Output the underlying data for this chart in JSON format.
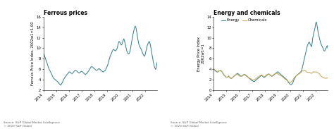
{
  "title_left": "Ferrous prices",
  "title_right": "Energy and chemicals",
  "ylabel_left": "Ferrous Price Index, 2002w1=1.00",
  "ylabel_right": "Energy Price Index\n2002w1=1",
  "ferrous_color": "#2a7d8c",
  "energy_color": "#2a7d8c",
  "chemicals_color": "#c8a44a",
  "ylim_left": [
    2.0,
    16.0
  ],
  "ylim_right": [
    0.0,
    14.0
  ],
  "yticks_left": [
    2.0,
    4.0,
    6.0,
    8.0,
    10.0,
    12.0,
    14.0,
    16.0
  ],
  "yticks_right": [
    0.0,
    2.0,
    4.0,
    6.0,
    8.0,
    10.0,
    12.0,
    14.0
  ],
  "ferrous": [
    9.0,
    8.8,
    8.5,
    8.2,
    7.8,
    7.5,
    7.2,
    6.8,
    6.5,
    6.2,
    5.9,
    5.7,
    5.5,
    5.2,
    5.0,
    4.7,
    4.5,
    4.3,
    4.2,
    4.1,
    4.0,
    3.9,
    3.8,
    3.7,
    3.6,
    3.5,
    3.3,
    3.2,
    3.1,
    3.0,
    3.2,
    3.4,
    3.6,
    3.9,
    4.1,
    4.3,
    4.5,
    4.6,
    4.8,
    5.0,
    5.1,
    5.2,
    5.4,
    5.5,
    5.5,
    5.4,
    5.3,
    5.2,
    5.2,
    5.3,
    5.4,
    5.6,
    5.7,
    5.8,
    5.8,
    5.7,
    5.6,
    5.5,
    5.4,
    5.3,
    5.3,
    5.4,
    5.5,
    5.6,
    5.6,
    5.5,
    5.4,
    5.3,
    5.2,
    5.1,
    5.0,
    5.1,
    5.2,
    5.3,
    5.5,
    5.6,
    5.8,
    6.0,
    6.2,
    6.4,
    6.5,
    6.5,
    6.4,
    6.3,
    6.2,
    6.1,
    6.0,
    5.9,
    5.8,
    5.8,
    5.9,
    6.0,
    6.1,
    6.1,
    6.0,
    5.9,
    5.8,
    5.7,
    5.6,
    5.5,
    5.5,
    5.6,
    5.7,
    5.8,
    6.0,
    6.3,
    6.5,
    6.8,
    7.2,
    7.6,
    8.0,
    8.4,
    8.7,
    8.9,
    9.2,
    9.5,
    9.7,
    9.8,
    9.7,
    9.6,
    9.5,
    9.6,
    9.8,
    10.0,
    10.5,
    11.0,
    11.3,
    11.2,
    11.0,
    10.8,
    10.6,
    10.8,
    11.2,
    11.5,
    11.8,
    11.5,
    11.0,
    10.5,
    10.0,
    9.5,
    9.2,
    9.0,
    8.9,
    9.0,
    9.3,
    9.8,
    10.5,
    11.2,
    11.8,
    12.5,
    13.0,
    13.5,
    14.0,
    14.2,
    14.0,
    13.5,
    12.8,
    12.0,
    11.4,
    10.8,
    10.5,
    10.2,
    10.0,
    9.8,
    9.5,
    9.2,
    8.9,
    8.7,
    8.5,
    8.5,
    9.0,
    9.5,
    10.0,
    10.5,
    10.8,
    11.0,
    11.3,
    11.2,
    10.8,
    10.2,
    9.5,
    8.8,
    8.2,
    7.5,
    7.0,
    6.5,
    6.2,
    6.0,
    6.3,
    7.0,
    7.5,
    7.8
  ],
  "energy": [
    4.0,
    3.9,
    3.8,
    3.7,
    3.6,
    3.5,
    3.5,
    3.5,
    3.6,
    3.7,
    3.7,
    3.8,
    3.7,
    3.6,
    3.5,
    3.3,
    3.1,
    2.9,
    2.8,
    2.7,
    2.6,
    2.5,
    2.5,
    2.5,
    2.6,
    2.7,
    2.5,
    2.4,
    2.3,
    2.2,
    2.3,
    2.4,
    2.5,
    2.6,
    2.7,
    2.8,
    2.9,
    3.0,
    3.1,
    3.2,
    3.2,
    3.1,
    3.0,
    2.9,
    2.8,
    2.7,
    2.7,
    2.7,
    2.8,
    2.9,
    3.0,
    3.0,
    3.0,
    2.9,
    2.8,
    2.7,
    2.6,
    2.5,
    2.4,
    2.3,
    2.2,
    2.1,
    2.0,
    1.9,
    1.8,
    1.8,
    1.7,
    1.7,
    1.7,
    1.8,
    1.9,
    2.0,
    2.1,
    2.2,
    2.3,
    2.4,
    2.5,
    2.6,
    2.7,
    2.8,
    2.8,
    2.7,
    2.6,
    2.5,
    2.5,
    2.5,
    2.6,
    2.7,
    2.8,
    2.9,
    3.0,
    3.1,
    3.1,
    3.0,
    2.9,
    2.8,
    2.7,
    2.7,
    2.7,
    2.8,
    2.9,
    3.0,
    3.1,
    3.2,
    3.3,
    3.4,
    3.5,
    3.5,
    3.4,
    3.3,
    3.2,
    3.1,
    3.0,
    2.9,
    2.8,
    2.7,
    2.6,
    2.5,
    2.4,
    2.3,
    2.2,
    2.1,
    2.0,
    1.8,
    1.6,
    1.4,
    1.3,
    1.2,
    1.1,
    1.1,
    1.2,
    1.3,
    1.5,
    1.8,
    2.1,
    2.3,
    2.5,
    2.7,
    2.8,
    2.9,
    3.0,
    3.1,
    3.2,
    3.3,
    3.4,
    3.5,
    3.7,
    4.0,
    4.5,
    5.0,
    5.5,
    6.0,
    6.5,
    7.0,
    7.5,
    8.0,
    8.5,
    8.8,
    9.0,
    9.2,
    9.0,
    8.7,
    8.5,
    8.3,
    9.0,
    10.0,
    10.5,
    11.0,
    11.5,
    12.0,
    12.8,
    13.0,
    12.5,
    11.8,
    11.0,
    10.5,
    10.0,
    9.5,
    9.0,
    8.8,
    8.5,
    8.3,
    8.0,
    7.8,
    7.5,
    7.5,
    7.8,
    8.0,
    8.2,
    8.5,
    8.0,
    7.8
  ],
  "chemicals": [
    4.1,
    4.0,
    3.9,
    3.8,
    3.7,
    3.6,
    3.6,
    3.6,
    3.7,
    3.7,
    3.7,
    3.8,
    3.7,
    3.6,
    3.5,
    3.3,
    3.1,
    2.9,
    2.8,
    2.7,
    2.6,
    2.5,
    2.5,
    2.5,
    2.6,
    2.7,
    2.5,
    2.4,
    2.3,
    2.2,
    2.3,
    2.4,
    2.5,
    2.6,
    2.7,
    2.8,
    2.9,
    3.0,
    3.0,
    3.0,
    3.0,
    2.9,
    2.8,
    2.7,
    2.7,
    2.7,
    2.7,
    2.8,
    2.8,
    2.9,
    3.0,
    3.0,
    2.9,
    2.8,
    2.7,
    2.7,
    2.6,
    2.5,
    2.4,
    2.3,
    2.3,
    2.2,
    2.2,
    2.1,
    2.0,
    2.0,
    2.0,
    2.0,
    2.0,
    2.1,
    2.2,
    2.3,
    2.4,
    2.5,
    2.5,
    2.6,
    2.7,
    2.8,
    2.8,
    2.9,
    2.9,
    2.8,
    2.7,
    2.6,
    2.6,
    2.6,
    2.7,
    2.8,
    2.9,
    3.0,
    3.0,
    3.1,
    3.1,
    3.0,
    2.9,
    2.8,
    2.8,
    2.8,
    2.8,
    2.9,
    3.0,
    3.1,
    3.1,
    3.2,
    3.2,
    3.2,
    3.2,
    3.2,
    3.1,
    3.0,
    2.9,
    2.8,
    2.8,
    2.7,
    2.6,
    2.5,
    2.4,
    2.3,
    2.2,
    2.1,
    2.1,
    2.0,
    1.9,
    1.8,
    1.7,
    1.6,
    1.5,
    1.5,
    1.5,
    1.6,
    1.7,
    1.8,
    2.0,
    2.2,
    2.4,
    2.5,
    2.6,
    2.7,
    2.8,
    2.9,
    3.0,
    3.1,
    3.1,
    3.2,
    3.3,
    3.4,
    3.5,
    3.6,
    3.7,
    3.8,
    3.8,
    3.8,
    3.7,
    3.7,
    3.6,
    3.5,
    3.4,
    3.4,
    3.4,
    3.4,
    3.4,
    3.3,
    3.3,
    3.2,
    3.3,
    3.4,
    3.5,
    3.5,
    3.5,
    3.5,
    3.5,
    3.5,
    3.4,
    3.4,
    3.3,
    3.2,
    3.2,
    3.0,
    2.8,
    2.7,
    2.6,
    2.5,
    2.5,
    2.4,
    2.4,
    2.3,
    2.3,
    2.3,
    2.3,
    2.4,
    2.3,
    2.3
  ],
  "xtick_years": [
    "2014",
    "2015",
    "2016",
    "2017",
    "2018",
    "2019",
    "2020",
    "2021",
    "2022"
  ],
  "n_points": 192,
  "start_year": 2014.0,
  "end_year": 2023.0
}
